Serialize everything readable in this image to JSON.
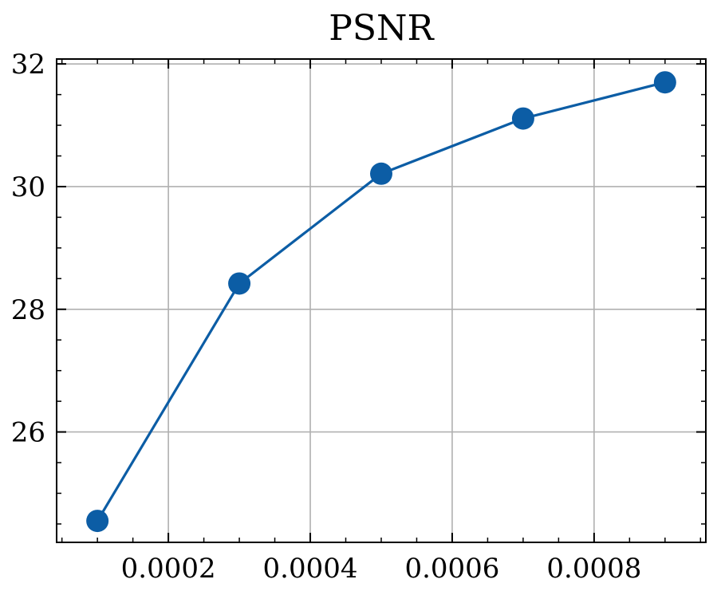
{
  "chart_data": {
    "type": "line",
    "title": "PSNR",
    "xlabel": "",
    "ylabel": "",
    "x": [
      0.0001,
      0.0003,
      0.0005,
      0.0007,
      0.0009
    ],
    "series": [
      {
        "values": [
          24.55,
          28.42,
          30.21,
          31.11,
          31.7
        ]
      }
    ],
    "xlim": [
      4.25e-05,
      0.0009575
    ],
    "ylim": [
      24.2,
      32.08
    ],
    "x_ticks": [
      0.0002,
      0.0004,
      0.0006,
      0.0008
    ],
    "x_tick_labels": [
      "0.0002",
      "0.0004",
      "0.0006",
      "0.0008"
    ],
    "y_ticks": [
      26,
      28,
      30,
      32
    ],
    "y_tick_labels": [
      "26",
      "28",
      "30",
      "32"
    ],
    "grid": true,
    "marker": "circle",
    "color": "#0c5da5"
  }
}
